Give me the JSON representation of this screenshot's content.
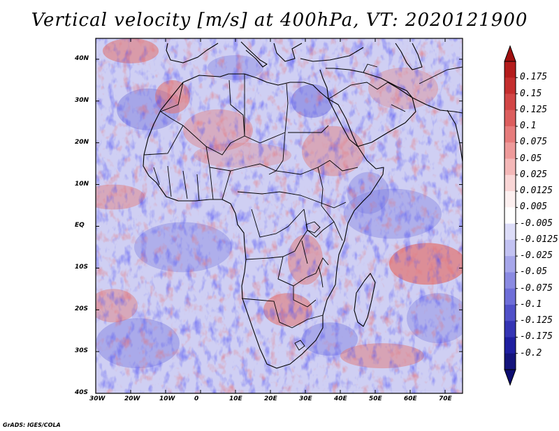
{
  "title": "Vertical velocity [m/s] at 400hPa, VT: 2020121900",
  "footer": "GrADS: IGES/COLA",
  "map": {
    "lon_range": [
      -30,
      75
    ],
    "lat_range": [
      -40,
      45
    ],
    "lon_ticks": [
      {
        "value": -30,
        "label": "30W"
      },
      {
        "value": -20,
        "label": "20W"
      },
      {
        "value": -10,
        "label": "10W"
      },
      {
        "value": 0,
        "label": "0"
      },
      {
        "value": 10,
        "label": "10E"
      },
      {
        "value": 20,
        "label": "20E"
      },
      {
        "value": 30,
        "label": "30E"
      },
      {
        "value": 40,
        "label": "40E"
      },
      {
        "value": 50,
        "label": "50E"
      },
      {
        "value": 60,
        "label": "60E"
      },
      {
        "value": 70,
        "label": "70E"
      }
    ],
    "lat_ticks": [
      {
        "value": 40,
        "label": "40N"
      },
      {
        "value": 30,
        "label": "30N"
      },
      {
        "value": 20,
        "label": "20N"
      },
      {
        "value": 10,
        "label": "10N"
      },
      {
        "value": 0,
        "label": "EQ"
      },
      {
        "value": -10,
        "label": "10S"
      },
      {
        "value": -20,
        "label": "20S"
      },
      {
        "value": -30,
        "label": "30S"
      },
      {
        "value": -40,
        "label": "40S"
      }
    ]
  },
  "colorbar": {
    "labels": [
      "0.175",
      "0.15",
      "0.125",
      "0.1",
      "0.075",
      "0.05",
      "0.025",
      "0.0125",
      "0.005",
      "-0.005",
      "-0.0125",
      "-0.025",
      "-0.05",
      "-0.075",
      "-0.1",
      "-0.125",
      "-0.175",
      "-0.2"
    ],
    "colors": [
      "#b41c1c",
      "#c42e2e",
      "#d24646",
      "#dc5e5e",
      "#e67c7c",
      "#ee9a9a",
      "#f4b8b8",
      "#f9d6d6",
      "#fdf0f0",
      "#ffffff",
      "#dcdcf8",
      "#c2c2f2",
      "#a6a6ea",
      "#8a8ae2",
      "#6e6ed8",
      "#5050c8",
      "#3434b4",
      "#1e1ea0",
      "#14147c"
    ]
  },
  "features": {
    "ascent_regions": [
      {
        "name": "atlas",
        "lon": -8,
        "lat": 31,
        "rlon": 5,
        "rlat": 4,
        "strength": 0.6
      },
      {
        "name": "n-atlantic-band",
        "lon": -20,
        "lat": 42,
        "rlon": 8,
        "rlat": 3,
        "strength": 0.6
      },
      {
        "name": "sahara-west",
        "lon": 5,
        "lat": 23,
        "rlon": 10,
        "rlat": 5,
        "strength": 0.4
      },
      {
        "name": "red-sea-band",
        "lon": 38,
        "lat": 18,
        "rlon": 9,
        "rlat": 6,
        "strength": 0.45
      },
      {
        "name": "atlantic-10n",
        "lon": -25,
        "lat": 7,
        "rlon": 9,
        "rlat": 3,
        "strength": 0.45
      },
      {
        "name": "tanzania-malawi",
        "lon": 30,
        "lat": -8,
        "rlon": 5,
        "rlat": 6,
        "strength": 0.5
      },
      {
        "name": "southern-africa",
        "lon": 25,
        "lat": -20,
        "rlon": 7,
        "rlat": 4,
        "strength": 0.6
      },
      {
        "name": "indian-ocean-trough",
        "lon": 65,
        "lat": -9,
        "rlon": 11,
        "rlat": 5,
        "strength": 0.75
      },
      {
        "name": "atlantic-south",
        "lon": -25,
        "lat": -19,
        "rlon": 7,
        "rlat": 4,
        "strength": 0.45
      },
      {
        "name": "sw-indian-band",
        "lon": 52,
        "lat": -31,
        "rlon": 12,
        "rlat": 3,
        "strength": 0.5
      },
      {
        "name": "iran",
        "lon": 58,
        "lat": 33,
        "rlon": 10,
        "rlat": 5,
        "strength": 0.35
      },
      {
        "name": "sahel",
        "lon": 12,
        "lat": 17,
        "rlon": 14,
        "rlat": 3,
        "strength": 0.3
      }
    ],
    "descent_regions": [
      {
        "name": "w-sahara",
        "lon": -15,
        "lat": 28,
        "rlon": 9,
        "rlat": 5,
        "strength": 0.45
      },
      {
        "name": "egypt",
        "lon": 32,
        "lat": 30,
        "rlon": 6,
        "rlat": 4,
        "strength": 0.55
      },
      {
        "name": "gulf-guinea",
        "lon": -5,
        "lat": -5,
        "rlon": 14,
        "rlat": 6,
        "strength": 0.35
      },
      {
        "name": "s-atlantic",
        "lon": -18,
        "lat": -28,
        "rlon": 12,
        "rlat": 6,
        "strength": 0.4
      },
      {
        "name": "s-africa-south",
        "lon": 37,
        "lat": -27,
        "rlon": 8,
        "rlat": 4,
        "strength": 0.4
      },
      {
        "name": "indian-eq",
        "lon": 55,
        "lat": 3,
        "rlon": 14,
        "rlat": 6,
        "strength": 0.35
      },
      {
        "name": "somalia",
        "lon": 48,
        "lat": 8,
        "rlon": 6,
        "rlat": 5,
        "strength": 0.35
      },
      {
        "name": "mediterranean",
        "lon": 10,
        "lat": 38,
        "rlon": 8,
        "rlat": 3,
        "strength": 0.35
      },
      {
        "name": "se-indian",
        "lon": 68,
        "lat": -22,
        "rlon": 9,
        "rlat": 6,
        "strength": 0.35
      }
    ]
  }
}
